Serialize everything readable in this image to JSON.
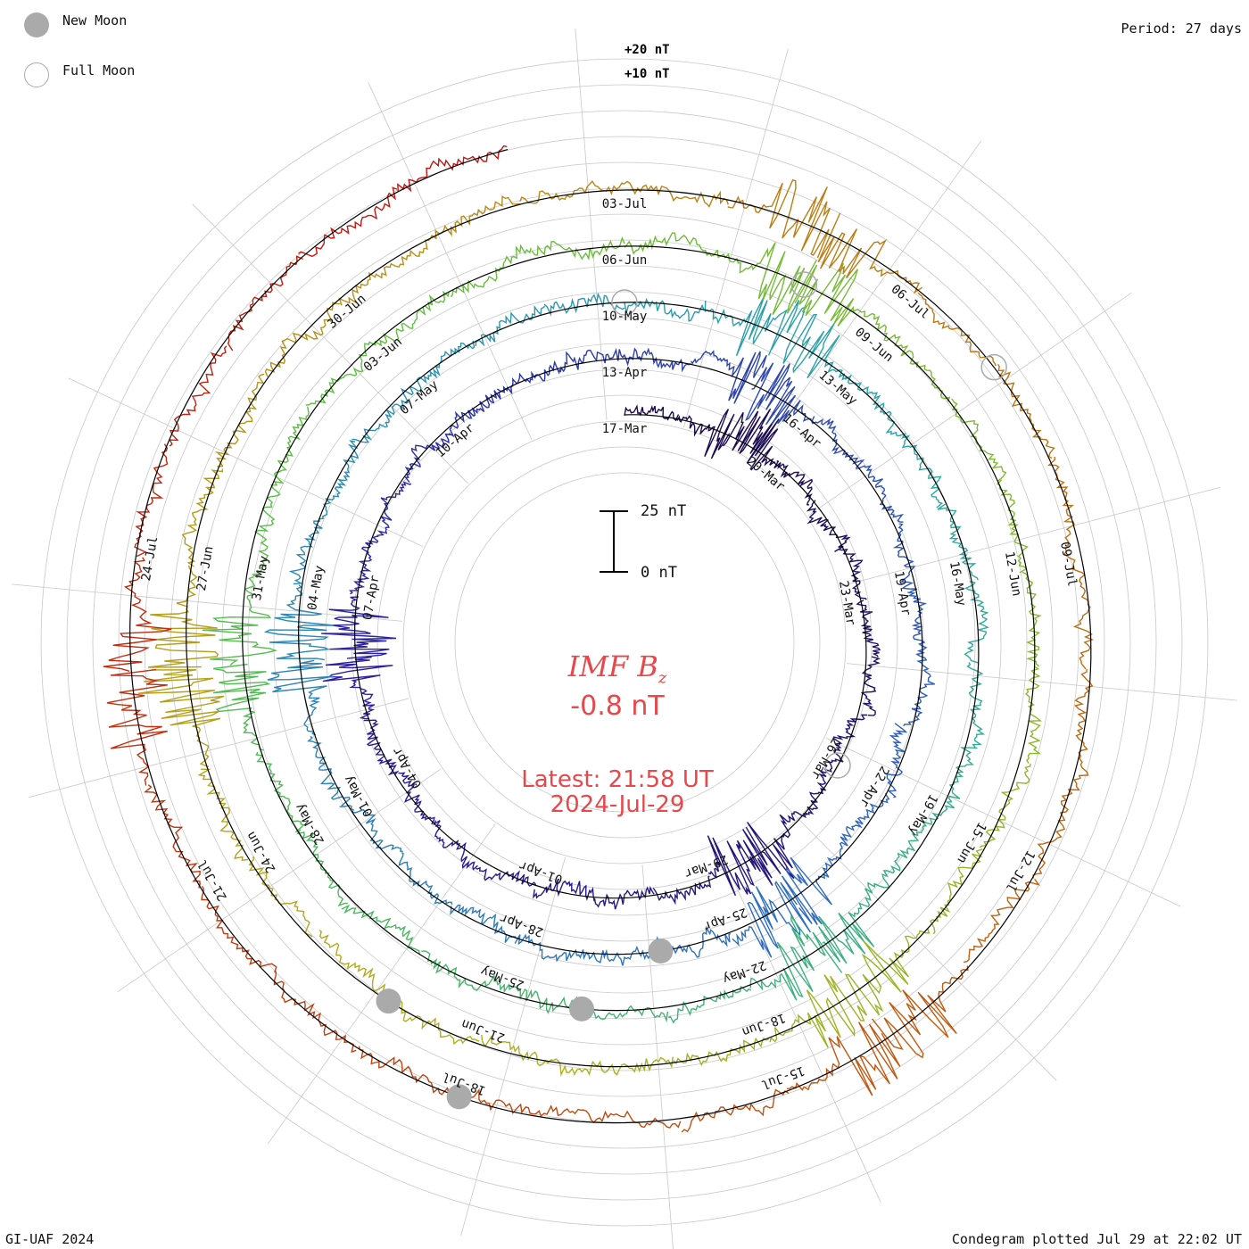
{
  "legend": {
    "new_moon": {
      "label": "New Moon",
      "color": "#aaaaaa",
      "icon": "filled-circle-icon"
    },
    "full_moon": {
      "label": "Full Moon",
      "color": "#aaaaaa",
      "icon": "open-circle-icon"
    }
  },
  "period_label": "Period: 27 days",
  "credit": "GI-UAF 2024",
  "plotted_label": "Condegram plotted Jul 29 at 22:02 UT",
  "center": {
    "param_name": "IMF B",
    "param_sub": "z",
    "value": "-0.8 nT",
    "latest_line1": "Latest: 21:58 UT",
    "latest_line2": "2024-Jul-29",
    "text_color": "#e8474b"
  },
  "scale_bar": {
    "top_label": "25 nT",
    "bottom_label": "0 nT"
  },
  "ref_labels": {
    "plus20": "+20 nT",
    "plus10": "+10 nT"
  },
  "chart_data": {
    "type": "condegram-spiral",
    "period_days": 27,
    "start_date": "2024-03-17",
    "end_date": "2024-07-29",
    "turns": 5,
    "series_colors": [
      "#1a0a4a",
      "#2c1fa0",
      "#2f6fc0",
      "#2aa6a6",
      "#5cc040",
      "#b0b020",
      "#c06a10",
      "#c01010"
    ],
    "date_labels": [
      {
        "text": "17-Mar",
        "day": 0
      },
      {
        "text": "20-Mar",
        "day": 3
      },
      {
        "text": "23-Mar",
        "day": 6
      },
      {
        "text": "26-Mar",
        "day": 9
      },
      {
        "text": "29-Mar",
        "day": 12
      },
      {
        "text": "01-Apr",
        "day": 15
      },
      {
        "text": "04-Apr",
        "day": 18
      },
      {
        "text": "07-Apr",
        "day": 21
      },
      {
        "text": "10-Apr",
        "day": 24
      },
      {
        "text": "13-Apr",
        "day": 27
      },
      {
        "text": "16-Apr",
        "day": 30
      },
      {
        "text": "19-Apr",
        "day": 33
      },
      {
        "text": "22-Apr",
        "day": 36
      },
      {
        "text": "25-Apr",
        "day": 39
      },
      {
        "text": "28-Apr",
        "day": 42
      },
      {
        "text": "01-May",
        "day": 45
      },
      {
        "text": "04-May",
        "day": 48
      },
      {
        "text": "07-May",
        "day": 51
      },
      {
        "text": "10-May",
        "day": 54
      },
      {
        "text": "13-May",
        "day": 57
      },
      {
        "text": "16-May",
        "day": 60
      },
      {
        "text": "19-May",
        "day": 63
      },
      {
        "text": "22-May",
        "day": 66
      },
      {
        "text": "25-May",
        "day": 69
      },
      {
        "text": "28-May",
        "day": 72
      },
      {
        "text": "31-May",
        "day": 75
      },
      {
        "text": "03-Jun",
        "day": 78
      },
      {
        "text": "06-Jun",
        "day": 81
      },
      {
        "text": "09-Jun",
        "day": 84
      },
      {
        "text": "12-Jun",
        "day": 87
      },
      {
        "text": "15-Jun",
        "day": 90
      },
      {
        "text": "18-Jun",
        "day": 93
      },
      {
        "text": "21-Jun",
        "day": 96
      },
      {
        "text": "24-Jun",
        "day": 99
      },
      {
        "text": "27-Jun",
        "day": 102
      },
      {
        "text": "30-Jun",
        "day": 105
      },
      {
        "text": "03-Jul",
        "day": 108
      },
      {
        "text": "06-Jul",
        "day": 111
      },
      {
        "text": "09-Jul",
        "day": 114
      },
      {
        "text": "12-Jul",
        "day": 117
      },
      {
        "text": "15-Jul",
        "day": 120
      },
      {
        "text": "18-Jul",
        "day": 123
      },
      {
        "text": "21-Jul",
        "day": 126
      },
      {
        "text": "24-Jul",
        "day": 129
      }
    ],
    "new_moons": [
      40,
      68,
      97,
      123
    ],
    "full_moons": [
      9,
      54,
      83,
      112
    ],
    "bz_range_nT": [
      -25,
      25
    ],
    "latest_value_nT": -0.8
  }
}
